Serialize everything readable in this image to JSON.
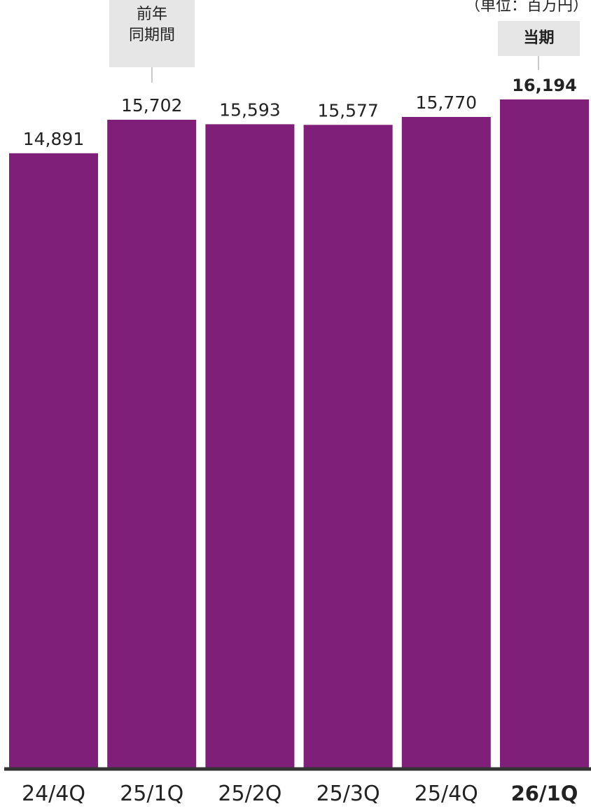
{
  "unit_label": "（単位：百万円）",
  "callouts": {
    "prior_period_line1": "前年",
    "prior_period_line2": "同期間",
    "current_period": "当期"
  },
  "colors": {
    "bar": "#7f1f79",
    "baseline": "#333333",
    "callout_bg": "#e6e6e6"
  },
  "chart_data": {
    "type": "bar",
    "title": "",
    "xlabel": "",
    "ylabel": "",
    "categories": [
      "24/4Q",
      "25/1Q",
      "25/2Q",
      "25/3Q",
      "25/4Q",
      "26/1Q"
    ],
    "values": [
      14891,
      15702,
      15593,
      15577,
      15770,
      16194
    ],
    "value_labels": [
      "14,891",
      "15,702",
      "15,593",
      "15,577",
      "15,770",
      "16,194"
    ],
    "highlight_index": 5,
    "ylim": [
      0,
      16194
    ],
    "grid": false,
    "legend": "none"
  }
}
